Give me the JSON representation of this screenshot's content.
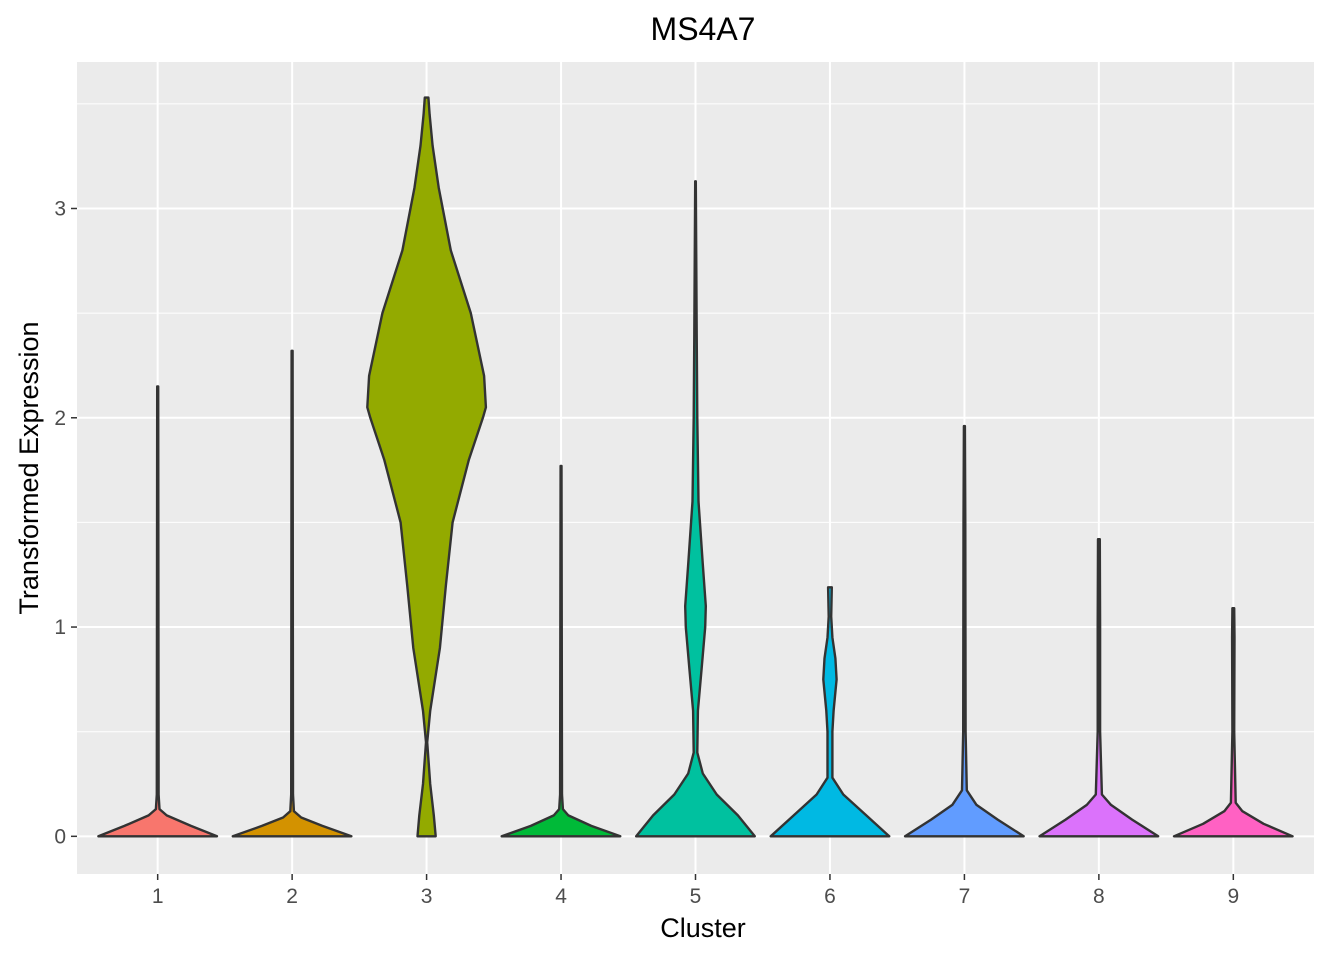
{
  "chart_data": {
    "type": "violin",
    "title": "MS4A7",
    "xlabel": "Cluster",
    "ylabel": "Transformed Expression",
    "categories": [
      "1",
      "2",
      "3",
      "4",
      "5",
      "6",
      "7",
      "8",
      "9"
    ],
    "y_ticks": [
      0,
      1,
      2,
      3
    ],
    "y_tick_labels": [
      "0",
      "1",
      "2",
      "3"
    ],
    "ylim": [
      -0.18,
      3.7
    ],
    "grid": true,
    "legend": "none",
    "colors": [
      "#F8766D",
      "#D39200",
      "#93AA00",
      "#00BA38",
      "#00C19F",
      "#00B9E3",
      "#619CFF",
      "#DB72FB",
      "#FF61C3"
    ],
    "violins": [
      {
        "cluster": "1",
        "max": 2.15,
        "density": [
          [
            0,
            0.98
          ],
          [
            0.05,
            0.55
          ],
          [
            0.1,
            0.15
          ],
          [
            0.13,
            0.03
          ],
          [
            0.2,
            0.015
          ],
          [
            2.15,
            0.008
          ]
        ]
      },
      {
        "cluster": "2",
        "max": 2.32,
        "density": [
          [
            0,
            0.98
          ],
          [
            0.05,
            0.5
          ],
          [
            0.09,
            0.15
          ],
          [
            0.12,
            0.03
          ],
          [
            0.2,
            0.015
          ],
          [
            2.32,
            0.008
          ]
        ]
      },
      {
        "cluster": "3",
        "max": 3.53,
        "density": [
          [
            0,
            0.15
          ],
          [
            0.1,
            0.12
          ],
          [
            0.25,
            0.06
          ],
          [
            0.45,
            0.01
          ],
          [
            0.6,
            0.06
          ],
          [
            0.9,
            0.22
          ],
          [
            1.2,
            0.32
          ],
          [
            1.5,
            0.43
          ],
          [
            1.8,
            0.7
          ],
          [
            2.0,
            0.93
          ],
          [
            2.05,
            0.98
          ],
          [
            2.2,
            0.95
          ],
          [
            2.5,
            0.73
          ],
          [
            2.8,
            0.4
          ],
          [
            3.1,
            0.2
          ],
          [
            3.3,
            0.1
          ],
          [
            3.45,
            0.05
          ],
          [
            3.53,
            0.03
          ]
        ]
      },
      {
        "cluster": "4",
        "max": 1.77,
        "density": [
          [
            0,
            0.98
          ],
          [
            0.05,
            0.5
          ],
          [
            0.1,
            0.12
          ],
          [
            0.13,
            0.03
          ],
          [
            0.2,
            0.015
          ],
          [
            1.77,
            0.008
          ]
        ]
      },
      {
        "cluster": "5",
        "max": 3.13,
        "density": [
          [
            0,
            0.98
          ],
          [
            0.1,
            0.7
          ],
          [
            0.2,
            0.35
          ],
          [
            0.3,
            0.12
          ],
          [
            0.4,
            0.03
          ],
          [
            0.6,
            0.04
          ],
          [
            0.8,
            0.1
          ],
          [
            1.0,
            0.16
          ],
          [
            1.1,
            0.17
          ],
          [
            1.3,
            0.12
          ],
          [
            1.6,
            0.05
          ],
          [
            2.0,
            0.03
          ],
          [
            2.4,
            0.02
          ],
          [
            3.13,
            0.005
          ]
        ]
      },
      {
        "cluster": "6",
        "max": 1.19,
        "density": [
          [
            0,
            0.98
          ],
          [
            0.1,
            0.6
          ],
          [
            0.2,
            0.22
          ],
          [
            0.28,
            0.04
          ],
          [
            0.5,
            0.04
          ],
          [
            0.6,
            0.06
          ],
          [
            0.75,
            0.11
          ],
          [
            0.85,
            0.09
          ],
          [
            0.95,
            0.04
          ],
          [
            1.05,
            0.02
          ],
          [
            1.19,
            0.03
          ]
        ]
      },
      {
        "cluster": "7",
        "max": 1.96,
        "density": [
          [
            0,
            0.98
          ],
          [
            0.08,
            0.55
          ],
          [
            0.15,
            0.2
          ],
          [
            0.22,
            0.04
          ],
          [
            0.5,
            0.02
          ],
          [
            1.5,
            0.015
          ],
          [
            1.96,
            0.008
          ]
        ]
      },
      {
        "cluster": "8",
        "max": 1.42,
        "density": [
          [
            0,
            0.98
          ],
          [
            0.08,
            0.55
          ],
          [
            0.15,
            0.2
          ],
          [
            0.2,
            0.05
          ],
          [
            0.5,
            0.02
          ],
          [
            1.0,
            0.02
          ],
          [
            1.42,
            0.015
          ]
        ]
      },
      {
        "cluster": "9",
        "max": 1.09,
        "density": [
          [
            0,
            0.98
          ],
          [
            0.06,
            0.5
          ],
          [
            0.12,
            0.15
          ],
          [
            0.16,
            0.04
          ],
          [
            0.5,
            0.015
          ],
          [
            0.95,
            0.02
          ],
          [
            1.09,
            0.015
          ]
        ]
      }
    ]
  }
}
